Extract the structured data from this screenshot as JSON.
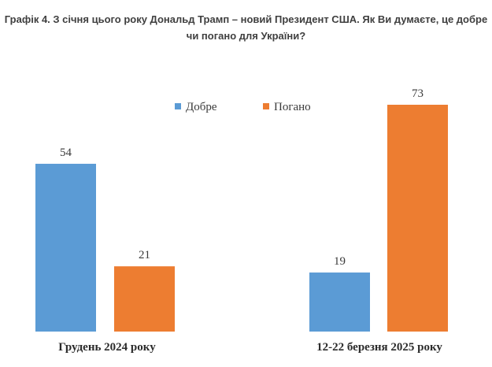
{
  "chart_data": {
    "type": "bar",
    "title": "Графік 4. З січня цього року Дональд Трамп – новий Президент США. Як Ви думаєте, це добре чи погано для України?",
    "categories": [
      "Грудень 2024 року",
      "12-22 березня 2025 року"
    ],
    "series": [
      {
        "name": "Добре",
        "values": [
          54,
          19
        ],
        "color": "#5b9bd5"
      },
      {
        "name": "Погано",
        "values": [
          21,
          73
        ],
        "color": "#ed7d31"
      }
    ],
    "ylim": [
      0,
      73
    ],
    "grid": false,
    "legend_position": "top-center"
  }
}
